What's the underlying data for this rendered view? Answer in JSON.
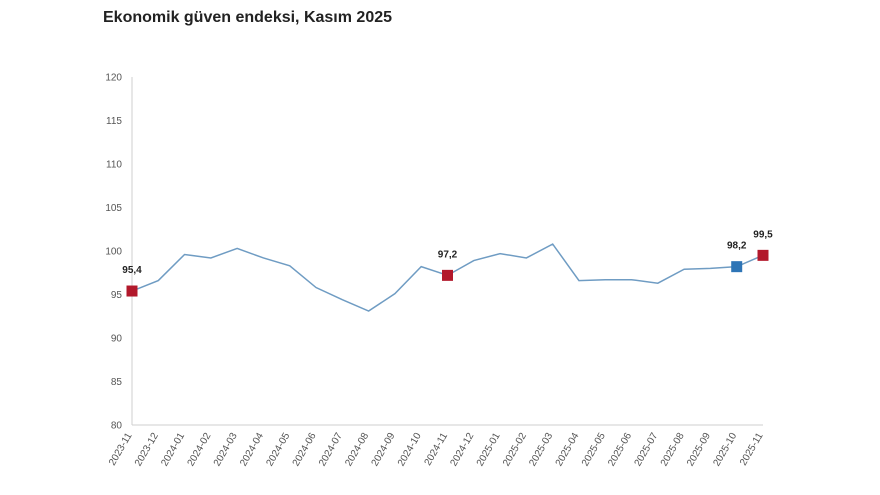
{
  "title": "Ekonomik güven endeksi, Kasım 2025",
  "colors": {
    "line": "#6f9cc3",
    "highlight": "#b2182b",
    "current": "#2e75b6",
    "axis": "#cfcfcf"
  },
  "chart_data": {
    "type": "line",
    "title": "Ekonomik güven endeksi, Kasım 2025",
    "xlabel": "",
    "ylabel": "",
    "ylim": [
      80,
      120
    ],
    "yticks": [
      80,
      85,
      90,
      95,
      100,
      105,
      110,
      115,
      120
    ],
    "grid": false,
    "legend": "none",
    "categories": [
      "2023-11",
      "2023-12",
      "2024-01",
      "2024-02",
      "2024-03",
      "2024-04",
      "2024-05",
      "2024-06",
      "2024-07",
      "2024-08",
      "2024-09",
      "2024-10",
      "2024-11",
      "2024-12",
      "2025-01",
      "2025-02",
      "2025-03",
      "2025-04",
      "2025-05",
      "2025-06",
      "2025-07",
      "2025-08",
      "2025-09",
      "2025-10",
      "2025-11"
    ],
    "series": [
      {
        "values": [
          95.4,
          96.6,
          99.6,
          99.2,
          100.3,
          99.2,
          98.3,
          95.8,
          94.4,
          93.1,
          95.1,
          98.2,
          97.2,
          98.9,
          99.7,
          99.2,
          100.8,
          96.6,
          96.7,
          96.7,
          96.3,
          97.9,
          98.0,
          98.2,
          99.5
        ]
      }
    ],
    "labeled_points": [
      {
        "category": "2023-11",
        "label": "95,4",
        "marker": "highlight"
      },
      {
        "category": "2024-11",
        "label": "97,2",
        "marker": "highlight"
      },
      {
        "category": "2025-10",
        "label": "98,2",
        "marker": "current"
      },
      {
        "category": "2025-11",
        "label": "99,5",
        "marker": "highlight"
      }
    ]
  }
}
